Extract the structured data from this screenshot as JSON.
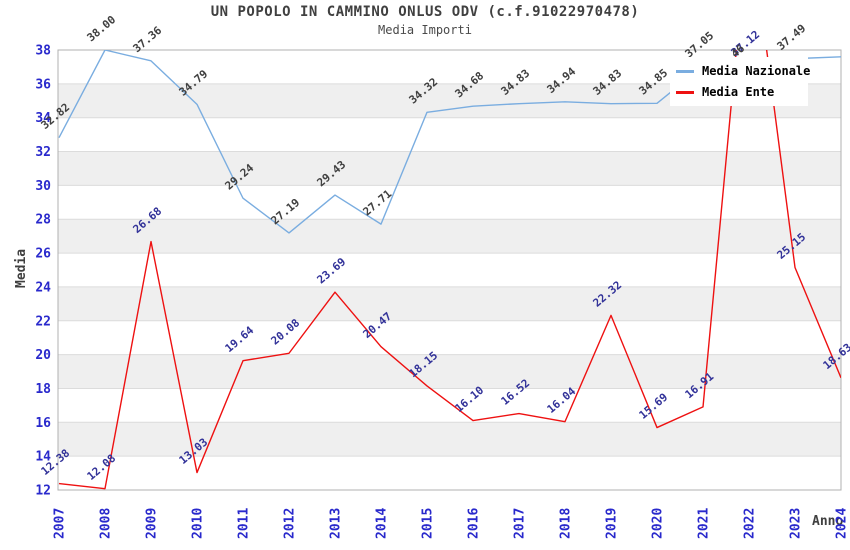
{
  "title": "UN POPOLO IN CAMMINO ONLUS ODV (c.f.91022970478)",
  "subtitle": "Media Importi",
  "axes": {
    "y_title": "Media",
    "x_title": "Anno",
    "y_ticks": [
      12,
      14,
      16,
      18,
      20,
      22,
      24,
      26,
      28,
      30,
      32,
      34,
      36,
      38
    ],
    "tick_color": "#2929cc"
  },
  "legend": {
    "items": [
      {
        "label": "Media Nazionale",
        "color": "#7aade0"
      },
      {
        "label": "Media Ente",
        "color": "#ee1111"
      }
    ]
  },
  "colors": {
    "band_gray": "#efefef",
    "gridline": "#dcdcdc",
    "plot_border": "#b0b0b0",
    "title_text": "#404040",
    "label_dark": "#404040",
    "label_navy": "#333399"
  },
  "chart_data": {
    "type": "line",
    "title": "UN POPOLO IN CAMMINO ONLUS ODV (c.f.91022970478)",
    "subtitle": "Media Importi",
    "xlabel": "Anno",
    "ylabel": "Media",
    "ylim": [
      12,
      38
    ],
    "ytick_step": 2,
    "grid": "horizontal-bands",
    "legend_position": "top-right-overlay",
    "categories": [
      "2007",
      "2008",
      "2009",
      "2010",
      "2011",
      "2012",
      "2013",
      "2014",
      "2015",
      "2016",
      "2017",
      "2018",
      "2019",
      "2020",
      "2021",
      "2022",
      "2023",
      "2024"
    ],
    "series": [
      {
        "name": "Media Nazionale",
        "color": "#7aade0",
        "label_color": "#404040",
        "values": [
          32.82,
          38.0,
          37.36,
          34.79,
          29.24,
          27.19,
          29.43,
          27.71,
          34.32,
          34.68,
          34.83,
          34.94,
          34.83,
          34.85,
          37.05,
          37.12,
          37.49,
          37.6
        ],
        "labels": [
          "32.82",
          "38.00",
          "37.36",
          "34.79",
          "29.24",
          "27.19",
          "29.43",
          "27.71",
          "34.32",
          "34.68",
          "34.83",
          "34.94",
          "34.83",
          "34.85",
          "37.05",
          "37.12",
          "37.49",
          ""
        ]
      },
      {
        "name": "Media Ente",
        "color": "#ee1111",
        "label_color": "#333399",
        "values": [
          12.38,
          12.08,
          26.68,
          13.03,
          19.64,
          20.08,
          23.69,
          20.47,
          18.15,
          16.1,
          16.52,
          16.04,
          22.32,
          15.69,
          16.91,
          46,
          25.15,
          18.63
        ],
        "labels": [
          "12.38",
          "12.08",
          "26.68",
          "13.03",
          "19.64",
          "20.08",
          "23.69",
          "20.47",
          "18.15",
          "16.10",
          "16.52",
          "16.04",
          "22.32",
          "15.69",
          "16.91",
          "46",
          "25.15",
          "18.63"
        ]
      }
    ],
    "label_overrides": {
      "0-15": "#333399",
      "1-15": "#404040"
    }
  }
}
